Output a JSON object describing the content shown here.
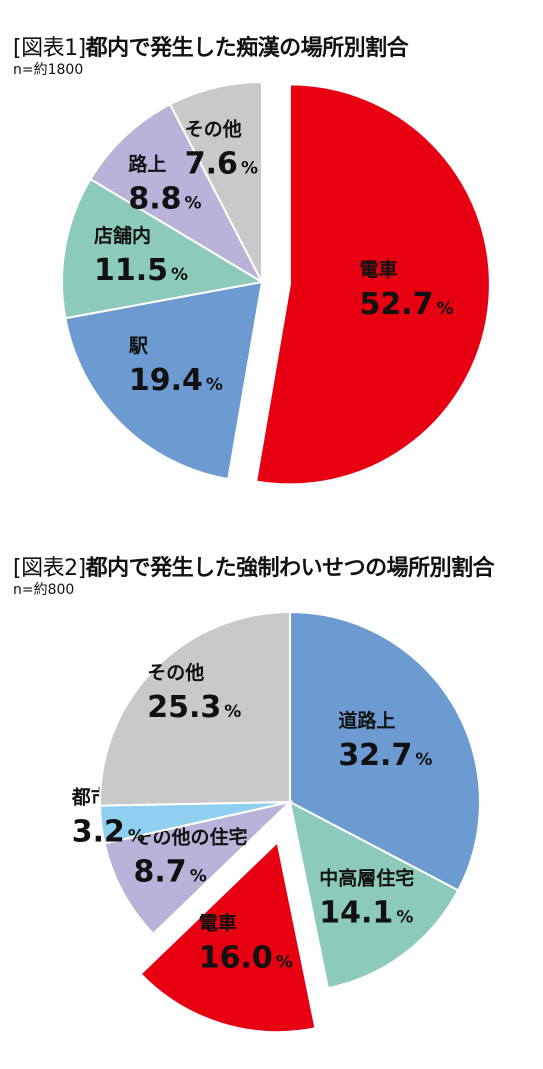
{
  "chart_data": [
    {
      "type": "pie",
      "title_tag": "[図表1]",
      "title": "都内で発生した痴漢の場所別割合",
      "subtitle": "n=約1800",
      "unit": "%",
      "slices": [
        {
          "label": "電車",
          "value": 52.7,
          "value_text": "52.7",
          "color": "#e60012",
          "exploded": true
        },
        {
          "label": "駅",
          "value": 19.4,
          "value_text": "19.4",
          "color": "#6c9bd2",
          "exploded": false
        },
        {
          "label": "店舗内",
          "value": 11.5,
          "value_text": "11.5",
          "color": "#8ccbbb",
          "exploded": false
        },
        {
          "label": "路上",
          "value": 8.8,
          "value_text": "8.8",
          "color": "#b7b3d9",
          "exploded": false
        },
        {
          "label": "その他",
          "value": 7.6,
          "value_text": "7.6",
          "color": "#c9c9c9",
          "exploded": false
        }
      ]
    },
    {
      "type": "pie",
      "title_tag": "[図表2]",
      "title": "都内で発生した強制わいせつの場所別割合",
      "subtitle": "n=約800",
      "unit": "%",
      "slices": [
        {
          "label": "道路上",
          "value": 32.7,
          "value_text": "32.7",
          "color": "#6c9bd2",
          "exploded": false
        },
        {
          "label": "中高層住宅",
          "value": 14.1,
          "value_text": "14.1",
          "color": "#8ccbbb",
          "exploded": false
        },
        {
          "label": "電車",
          "value": 16.0,
          "value_text": "16.0",
          "color": "#e60012",
          "exploded": true
        },
        {
          "label": "その他の住宅",
          "value": 8.7,
          "value_text": "8.7",
          "color": "#b7b3d9",
          "exploded": false
        },
        {
          "label": "都市公園",
          "value": 3.2,
          "value_text": "3.2",
          "color": "#8fd0f0",
          "exploded": false
        },
        {
          "label": "その他",
          "value": 25.3,
          "value_text": "25.3",
          "color": "#c9c9c9",
          "exploded": false
        }
      ]
    }
  ]
}
